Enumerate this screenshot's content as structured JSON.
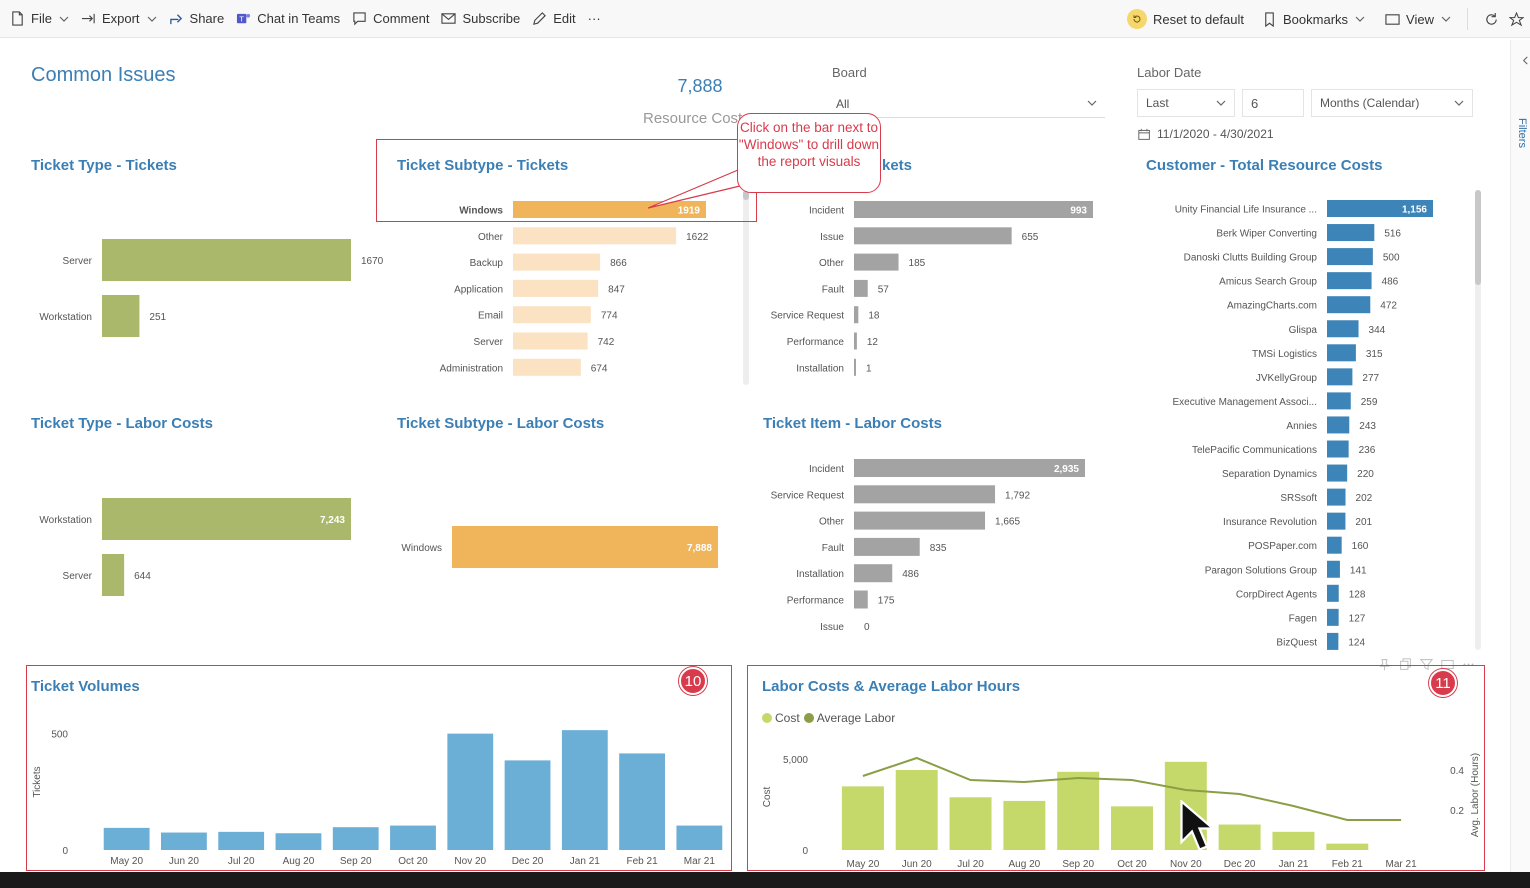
{
  "toolbar": {
    "file": "File",
    "export": "Export",
    "share": "Share",
    "chat_in_teams": "Chat in Teams",
    "comment": "Comment",
    "subscribe": "Subscribe",
    "edit": "Edit",
    "more": "···",
    "reset_to_default": "Reset to default",
    "bookmarks": "Bookmarks",
    "view": "View"
  },
  "right_rail": {
    "filters": "Filters"
  },
  "page": {
    "title": "Common Issues",
    "kpi_value": "7,888",
    "kpi_label": "Resource Costs"
  },
  "board_slicer": {
    "title": "Board",
    "value": "All"
  },
  "labor_date_slicer": {
    "title": "Labor Date",
    "period": "Last",
    "count": "6",
    "unit": "Months (Calendar)",
    "range": "11/1/2020 - 4/30/2021"
  },
  "callout": {
    "text": "Click on the bar next to \"Windows\" to drill down the report visuals"
  },
  "badges": {
    "ticket_volumes": "10",
    "labor_costs": "11"
  },
  "colors": {
    "olive": "#a9b86a",
    "orange": "#f0b55a",
    "peach": "#fbe2c3",
    "gray": "#a3a3a3",
    "blue": "#3d84b8",
    "lightblue": "#6baed6",
    "lime": "#c5d96b",
    "line": "#8a9e46",
    "accent_red": "#d83b4b"
  },
  "visuals": {
    "ticket_type_tickets": "Ticket Type - Tickets",
    "ticket_subtype_tickets": "Ticket Subtype - Tickets",
    "ticket_item_tickets": "kets",
    "customer_costs": "Customer - Total Resource Costs",
    "ticket_type_labor": "Ticket Type - Labor Costs",
    "ticket_subtype_labor": "Ticket Subtype - Labor Costs",
    "ticket_item_labor": "Ticket Item - Labor Costs",
    "ticket_volumes": "Ticket Volumes",
    "labor_costs_hours": "Labor Costs & Average Labor Hours"
  },
  "chart_data": [
    {
      "id": "ticket_type_tickets",
      "type": "bar",
      "orientation": "horizontal",
      "categories": [
        "Server",
        "Workstation"
      ],
      "values": [
        1670,
        251
      ],
      "labels": [
        "1670",
        "251"
      ]
    },
    {
      "id": "ticket_subtype_tickets",
      "type": "bar",
      "orientation": "horizontal",
      "categories": [
        "Windows",
        "Other",
        "Backup",
        "Application",
        "Email",
        "Server",
        "Administration"
      ],
      "values": [
        1919,
        1622,
        866,
        847,
        774,
        742,
        674
      ],
      "labels": [
        "1919",
        "1622",
        "866",
        "847",
        "774",
        "742",
        "674"
      ],
      "highlighted": "Windows"
    },
    {
      "id": "ticket_item_tickets",
      "type": "bar",
      "orientation": "horizontal",
      "categories": [
        "Incident",
        "Issue",
        "Other",
        "Fault",
        "Service Request",
        "Performance",
        "Installation"
      ],
      "values": [
        993,
        655,
        185,
        57,
        18,
        12,
        1
      ],
      "labels": [
        "993",
        "655",
        "185",
        "57",
        "18",
        "12",
        "1"
      ]
    },
    {
      "id": "customer_costs",
      "type": "bar",
      "orientation": "horizontal",
      "categories": [
        "Unity Financial Life Insurance ...",
        "Berk Wiper Converting",
        "Danoski Clutts Building Group",
        "Amicus Search Group",
        "AmazingCharts.com",
        "Glispa",
        "TMSi Logistics",
        "JVKellyGroup",
        "Executive Management Associ...",
        "Annies",
        "TelePacific Communications",
        "Separation Dynamics",
        "SRSsoft",
        "Insurance Revolution",
        "POSPaper.com",
        "Paragon Solutions Group",
        "CorpDirect Agents",
        "Fagen",
        "BizQuest"
      ],
      "values": [
        1156,
        516,
        500,
        486,
        472,
        344,
        315,
        277,
        259,
        243,
        236,
        220,
        202,
        201,
        160,
        141,
        128,
        127,
        124
      ],
      "labels": [
        "1,156",
        "516",
        "500",
        "486",
        "472",
        "344",
        "315",
        "277",
        "259",
        "243",
        "236",
        "220",
        "202",
        "201",
        "160",
        "141",
        "128",
        "127",
        "124"
      ]
    },
    {
      "id": "ticket_type_labor",
      "type": "bar",
      "orientation": "horizontal",
      "categories": [
        "Workstation",
        "Server"
      ],
      "values": [
        7243,
        644
      ],
      "labels": [
        "7,243",
        "644"
      ]
    },
    {
      "id": "ticket_subtype_labor",
      "type": "bar",
      "orientation": "horizontal",
      "categories": [
        "Windows"
      ],
      "values": [
        7888
      ],
      "labels": [
        "7,888"
      ]
    },
    {
      "id": "ticket_item_labor",
      "type": "bar",
      "orientation": "horizontal",
      "categories": [
        "Incident",
        "Service Request",
        "Other",
        "Fault",
        "Installation",
        "Performance",
        "Issue"
      ],
      "values": [
        2935,
        1792,
        1665,
        835,
        486,
        175,
        0
      ],
      "labels": [
        "2,935",
        "1,792",
        "1,665",
        "835",
        "486",
        "175",
        "0"
      ]
    },
    {
      "id": "ticket_volumes",
      "type": "bar",
      "categories": [
        "May 20",
        "Jun 20",
        "Jul 20",
        "Aug 20",
        "Sep 20",
        "Oct 20",
        "Nov 20",
        "Dec 20",
        "Jan 21",
        "Feb 21",
        "Mar 21"
      ],
      "values": [
        95,
        75,
        78,
        72,
        98,
        105,
        500,
        385,
        515,
        415,
        105
      ],
      "ylabel": "Tickets",
      "yticks": [
        "0",
        "500"
      ],
      "ylim": [
        0,
        550
      ]
    },
    {
      "id": "labor_costs_hours",
      "type": "bar+line",
      "categories": [
        "May 20",
        "Jun 20",
        "Jul 20",
        "Aug 20",
        "Sep 20",
        "Oct 20",
        "Nov 20",
        "Dec 20",
        "Jan 21",
        "Feb 21",
        "Mar 21"
      ],
      "series": [
        {
          "name": "Cost",
          "type": "bar",
          "axis": "left",
          "values": [
            3500,
            4400,
            2900,
            2700,
            4300,
            2400,
            4850,
            1400,
            1000,
            350,
            0
          ]
        },
        {
          "name": "Average Labor",
          "type": "line",
          "axis": "right",
          "values": [
            0.37,
            0.46,
            0.35,
            0.34,
            0.36,
            0.35,
            0.3,
            0.28,
            0.22,
            0.15,
            0.15
          ]
        }
      ],
      "ylabel": "Cost",
      "y2label": "Avg. Labor (Hours)",
      "yticks": [
        "0",
        "5,000"
      ],
      "y2ticks": [
        "0.2",
        "0.4"
      ],
      "ylim": [
        0,
        5500
      ],
      "y2lim": [
        0,
        0.5
      ]
    }
  ]
}
